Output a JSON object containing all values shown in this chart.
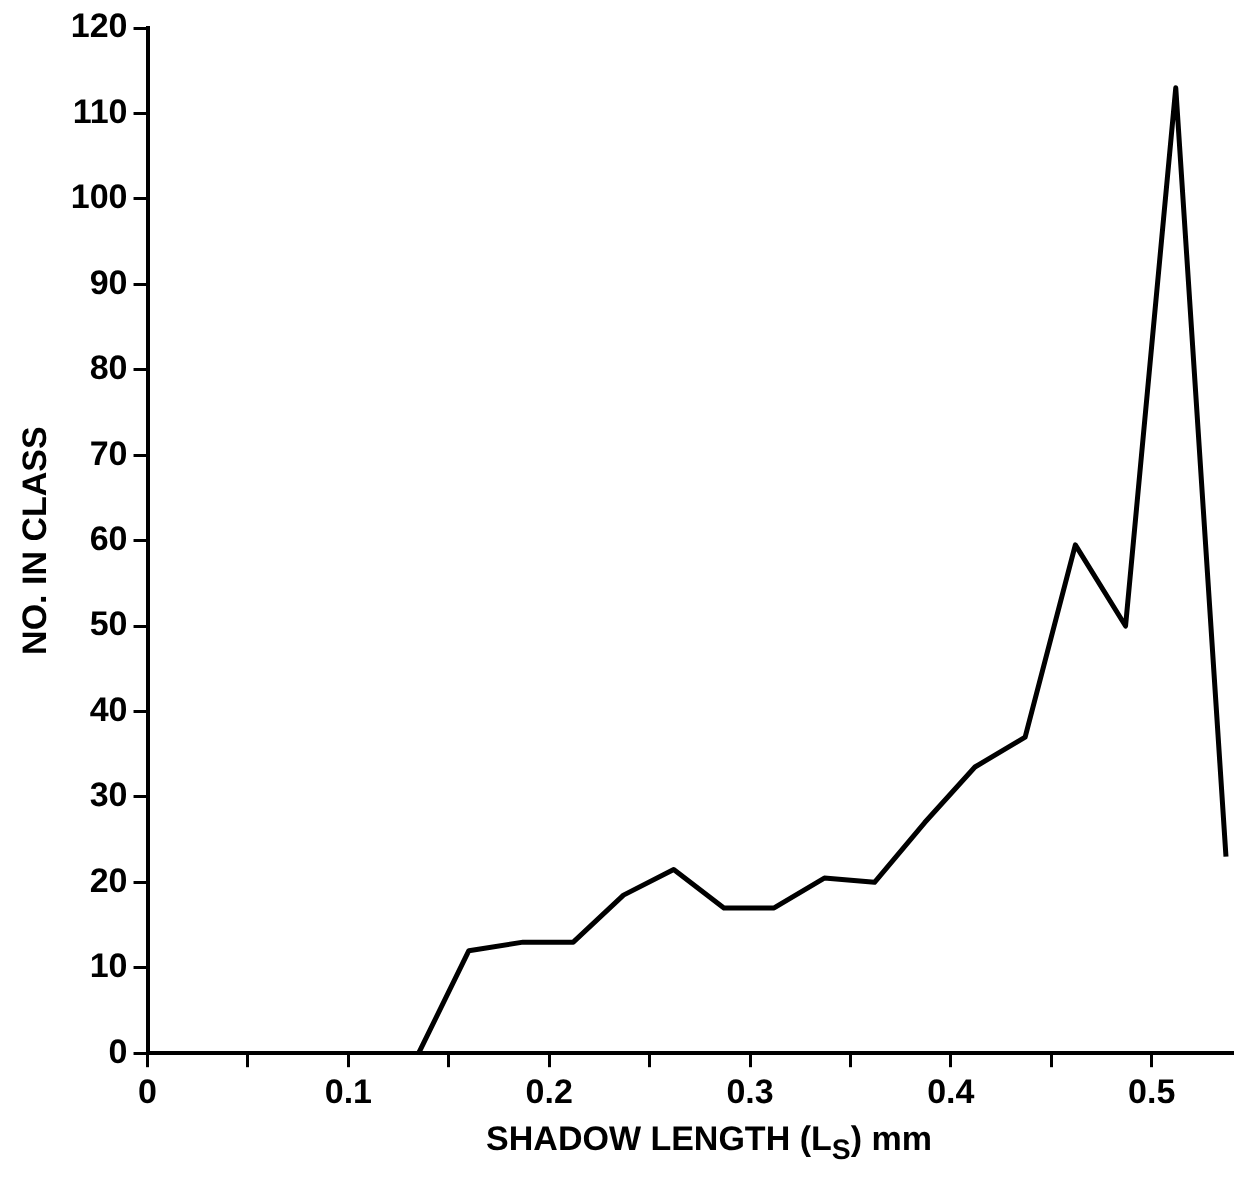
{
  "chart_data": {
    "type": "line",
    "xlabel": "SHADOW LENGTH (L$_{S}$) mm",
    "ylabel": "NO. IN CLASS",
    "x": [
      0.135,
      0.16,
      0.187,
      0.212,
      0.237,
      0.262,
      0.287,
      0.312,
      0.337,
      0.362,
      0.387,
      0.412,
      0.437,
      0.462,
      0.487,
      0.512,
      0.537
    ],
    "series": [
      {
        "color": "#000000",
        "values": [
          0,
          12,
          13,
          13,
          18.5,
          21.5,
          17,
          17,
          20.5,
          20,
          27,
          33.5,
          37,
          59.5,
          50,
          113,
          23
        ]
      }
    ],
    "xlim": [
      0,
      0.54
    ],
    "xticks": [
      0,
      {
        "value": 0.05,
        "label": null
      },
      0.1,
      {
        "value": 0.15,
        "label": null
      },
      0.2,
      {
        "value": 0.25,
        "label": null
      },
      0.3,
      {
        "value": 0.35,
        "label": null
      },
      0.4,
      {
        "value": 0.45,
        "label": null
      },
      0.5
    ],
    "ylim": [
      0,
      120
    ],
    "yticks": [
      0,
      10,
      20,
      30,
      40,
      50,
      60,
      70,
      80,
      90,
      100,
      110,
      120
    ],
    "grid": false,
    "legend": false,
    "marker": "none",
    "line_style": "solid"
  }
}
